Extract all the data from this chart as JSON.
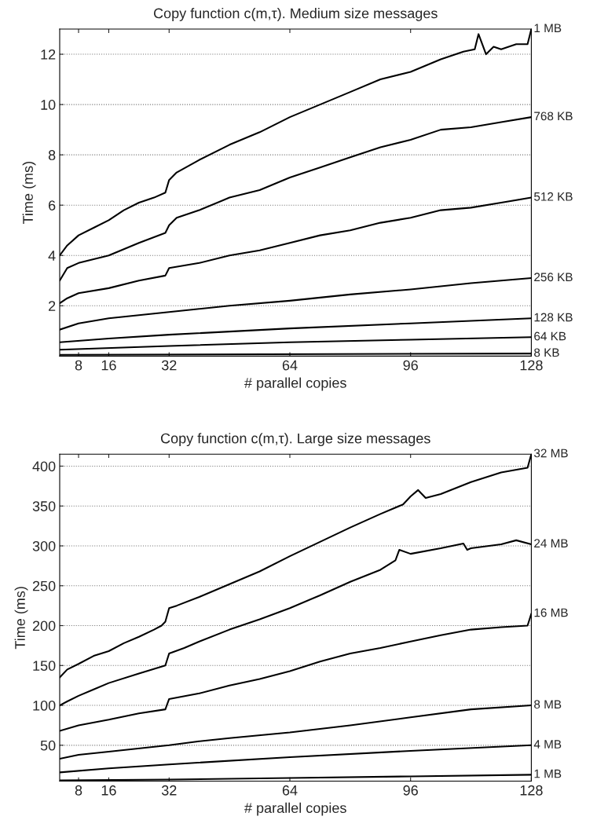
{
  "chart_data": [
    {
      "type": "line",
      "title": "Copy function c(m,τ). Medium size messages",
      "xlabel": "# parallel copies",
      "ylabel": "Time (ms)",
      "xlim": [
        3,
        128
      ],
      "xticks": [
        8,
        16,
        32,
        64,
        96,
        128
      ],
      "ylim": [
        0,
        13
      ],
      "yticks": [
        2,
        4,
        6,
        8,
        10,
        12
      ],
      "grid": "y",
      "line_style": "solid",
      "series": [
        {
          "name": "1 MB",
          "color": "#000000",
          "x": [
            3,
            5,
            8,
            12,
            16,
            20,
            24,
            28,
            31,
            32,
            34,
            40,
            48,
            56,
            64,
            72,
            80,
            88,
            96,
            104,
            110,
            113,
            114,
            116,
            118,
            120,
            124,
            127,
            128
          ],
          "values": [
            4.0,
            4.4,
            4.8,
            5.1,
            5.4,
            5.8,
            6.1,
            6.3,
            6.5,
            7.0,
            7.3,
            7.8,
            8.4,
            8.9,
            9.5,
            10.0,
            10.5,
            11.0,
            11.3,
            11.8,
            12.1,
            12.2,
            12.8,
            12.0,
            12.3,
            12.2,
            12.4,
            12.4,
            13.0
          ]
        },
        {
          "name": "768 KB",
          "color": "#000000",
          "x": [
            3,
            5,
            8,
            16,
            24,
            31,
            32,
            34,
            40,
            48,
            56,
            64,
            72,
            80,
            88,
            96,
            104,
            112,
            120,
            128
          ],
          "values": [
            3.0,
            3.5,
            3.7,
            4.0,
            4.5,
            4.9,
            5.2,
            5.5,
            5.8,
            6.3,
            6.6,
            7.1,
            7.5,
            7.9,
            8.3,
            8.6,
            9.0,
            9.1,
            9.3,
            9.5
          ]
        },
        {
          "name": "512 KB",
          "color": "#000000",
          "x": [
            3,
            5,
            8,
            16,
            24,
            31,
            32,
            40,
            48,
            56,
            64,
            72,
            80,
            88,
            96,
            104,
            112,
            120,
            128
          ],
          "values": [
            2.1,
            2.3,
            2.5,
            2.7,
            3.0,
            3.2,
            3.5,
            3.7,
            4.0,
            4.2,
            4.5,
            4.8,
            5.0,
            5.3,
            5.5,
            5.8,
            5.9,
            6.1,
            6.3
          ]
        },
        {
          "name": "256 KB",
          "color": "#000000",
          "x": [
            3,
            8,
            16,
            32,
            48,
            64,
            80,
            96,
            112,
            128
          ],
          "values": [
            1.05,
            1.3,
            1.5,
            1.75,
            2.0,
            2.2,
            2.45,
            2.65,
            2.9,
            3.1
          ]
        },
        {
          "name": "128 KB",
          "color": "#000000",
          "x": [
            3,
            16,
            32,
            64,
            96,
            128
          ],
          "values": [
            0.55,
            0.7,
            0.85,
            1.1,
            1.3,
            1.5
          ]
        },
        {
          "name": "64 KB",
          "color": "#000000",
          "x": [
            3,
            32,
            64,
            96,
            128
          ],
          "values": [
            0.25,
            0.4,
            0.55,
            0.65,
            0.75
          ]
        },
        {
          "name": "8 KB",
          "color": "#000000",
          "x": [
            3,
            128
          ],
          "values": [
            0.05,
            0.1
          ]
        }
      ]
    },
    {
      "type": "line",
      "title": "Copy function c(m,τ). Large size messages",
      "xlabel": "# parallel copies",
      "ylabel": "Time (ms)",
      "xlim": [
        3,
        128
      ],
      "xticks": [
        8,
        16,
        32,
        64,
        96,
        128
      ],
      "ylim": [
        5,
        415
      ],
      "yticks": [
        50,
        100,
        150,
        200,
        250,
        300,
        350,
        400
      ],
      "grid": "y",
      "line_style": "solid",
      "series": [
        {
          "name": "32 MB",
          "color": "#000000",
          "x": [
            3,
            5,
            8,
            12,
            16,
            20,
            24,
            28,
            30,
            31,
            32,
            34,
            40,
            48,
            56,
            64,
            72,
            80,
            88,
            94,
            96,
            98,
            100,
            104,
            112,
            120,
            127,
            128
          ],
          "values": [
            135,
            145,
            152,
            162,
            168,
            178,
            186,
            195,
            200,
            205,
            222,
            225,
            236,
            252,
            268,
            287,
            305,
            323,
            340,
            352,
            362,
            370,
            360,
            365,
            380,
            392,
            398,
            415
          ]
        },
        {
          "name": "24 MB",
          "color": "#000000",
          "x": [
            3,
            5,
            8,
            12,
            16,
            24,
            31,
            32,
            36,
            40,
            48,
            56,
            64,
            72,
            80,
            88,
            92,
            93,
            96,
            104,
            110,
            111,
            112,
            120,
            124,
            128
          ],
          "values": [
            100,
            105,
            112,
            120,
            128,
            140,
            150,
            165,
            172,
            180,
            195,
            208,
            222,
            238,
            255,
            270,
            282,
            295,
            290,
            297,
            303,
            295,
            297,
            302,
            307,
            302
          ]
        },
        {
          "name": "16 MB",
          "color": "#000000",
          "x": [
            3,
            8,
            16,
            24,
            31,
            32,
            40,
            48,
            56,
            64,
            72,
            80,
            88,
            96,
            104,
            112,
            120,
            127,
            128
          ],
          "values": [
            68,
            75,
            82,
            90,
            95,
            108,
            115,
            125,
            133,
            143,
            155,
            165,
            172,
            180,
            188,
            195,
            198,
            200,
            215
          ]
        },
        {
          "name": "8 MB",
          "color": "#000000",
          "x": [
            3,
            8,
            16,
            32,
            40,
            48,
            64,
            80,
            96,
            112,
            128
          ],
          "values": [
            33,
            38,
            42,
            50,
            55,
            59,
            66,
            75,
            85,
            95,
            100
          ]
        },
        {
          "name": "4 MB",
          "color": "#000000",
          "x": [
            3,
            16,
            32,
            64,
            96,
            128
          ],
          "values": [
            16,
            21,
            26,
            35,
            43,
            50
          ]
        },
        {
          "name": "1 MB",
          "color": "#000000",
          "x": [
            3,
            32,
            64,
            96,
            128
          ],
          "values": [
            6,
            7,
            9,
            11,
            13
          ]
        }
      ]
    }
  ]
}
